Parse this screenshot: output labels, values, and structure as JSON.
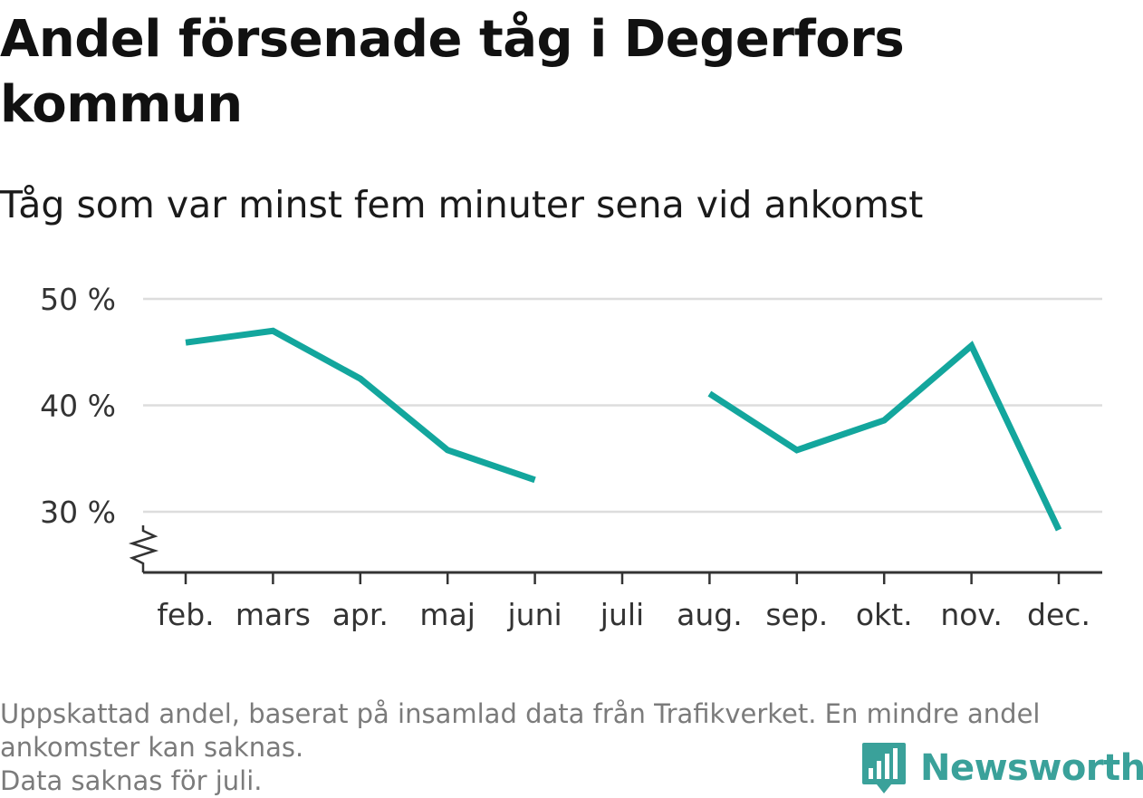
{
  "title": "Andel försenade tåg i Degerfors kommun",
  "subtitle": "Tåg som var minst fem minuter sena vid ankomst",
  "footnote": {
    "line1": "Uppskattad andel, baserat på insamlad data från Trafikverket. En mindre andel ankomster kan saknas.",
    "line2": "Data saknas för juli."
  },
  "brand": {
    "name": "Newsworthy",
    "icon": "newsworthy-logo-icon"
  },
  "colors": {
    "line": "#13a69d",
    "grid": "#dddddd",
    "axis": "#333333",
    "brand": "#3aa19a"
  },
  "chart_data": {
    "type": "line",
    "title": "Andel försenade tåg i Degerfors kommun",
    "subtitle": "Tåg som var minst fem minuter sena vid ankomst",
    "categories": [
      "feb.",
      "mars",
      "apr.",
      "maj",
      "juni",
      "juli",
      "aug.",
      "sep.",
      "okt.",
      "nov.",
      "dec."
    ],
    "series": [
      {
        "values": [
          45.9,
          47.0,
          42.5,
          35.8,
          33.0,
          null,
          41.1,
          35.8,
          38.6,
          45.6,
          28.3
        ]
      }
    ],
    "yticks": [
      30,
      40,
      50
    ],
    "ytick_labels": [
      "30 %",
      "40 %",
      "50 %"
    ],
    "ylim": [
      24.3,
      50
    ],
    "y_axis_break": true,
    "grid": true,
    "legend": "none"
  }
}
